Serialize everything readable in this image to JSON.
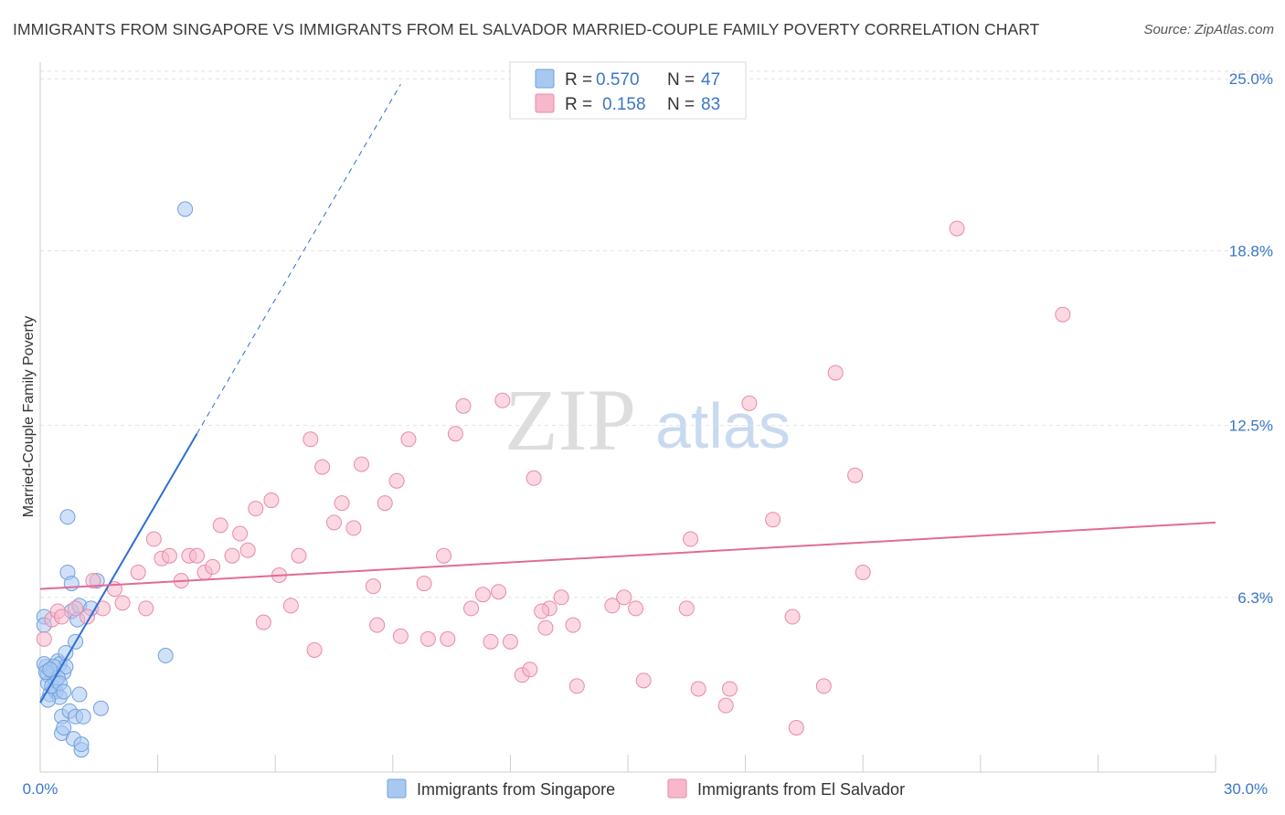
{
  "title": "IMMIGRANTS FROM SINGAPORE VS IMMIGRANTS FROM EL SALVADOR MARRIED-COUPLE FAMILY POVERTY CORRELATION CHART",
  "source": "Source: ZipAtlas.com",
  "watermark": {
    "zip": "ZIP",
    "atlas": "atlas"
  },
  "legend": {
    "rows": [
      {
        "r_label": "R =",
        "r_value": "0.570",
        "n_label": "N =",
        "n_value": "47",
        "color": "#a9c8f0"
      },
      {
        "r_label": "R =",
        "r_value": "0.158",
        "n_label": "N =",
        "n_value": "83",
        "color": "#f7b8cb"
      }
    ]
  },
  "bottom_legend": {
    "items": [
      {
        "label": "Immigrants from Singapore",
        "color": "#a9c8f0"
      },
      {
        "label": "Immigrants from El Salvador",
        "color": "#f7b8cb"
      }
    ]
  },
  "chart_data": {
    "type": "scatter",
    "title": "IMMIGRANTS FROM SINGAPORE VS IMMIGRANTS FROM EL SALVADOR MARRIED-COUPLE FAMILY POVERTY CORRELATION CHART",
    "xlabel": "",
    "ylabel": "Married-Couple Family Poverty",
    "xlim": [
      0,
      30
    ],
    "ylim": [
      0,
      25.6
    ],
    "x_tick_labels": [
      "0.0%",
      "30.0%"
    ],
    "y_ticks": [
      6.3,
      12.5,
      18.8,
      25.0
    ],
    "y_tick_labels": [
      "6.3%",
      "12.5%",
      "18.8%",
      "25.0%"
    ],
    "series": [
      {
        "name": "Immigrants from Singapore",
        "color": "#6fa0df",
        "fill": "#a9c8f0",
        "trend": {
          "x0": 0.0,
          "y0": 2.5,
          "x1": 4.0,
          "y1": 12.2,
          "dash_to_x": 9.2,
          "dash_to_y": 24.8,
          "color": "#2d6fd1"
        },
        "points": [
          [
            0.1,
            5.6
          ],
          [
            0.1,
            5.3
          ],
          [
            0.15,
            3.8
          ],
          [
            0.2,
            3.5
          ],
          [
            0.2,
            3.2
          ],
          [
            0.25,
            2.8
          ],
          [
            0.3,
            3.6
          ],
          [
            0.35,
            3.0
          ],
          [
            0.4,
            2.9
          ],
          [
            0.4,
            3.3
          ],
          [
            0.45,
            4.0
          ],
          [
            0.5,
            2.7
          ],
          [
            0.5,
            3.9
          ],
          [
            0.55,
            2.0
          ],
          [
            0.55,
            1.4
          ],
          [
            0.6,
            3.6
          ],
          [
            0.6,
            1.6
          ],
          [
            0.65,
            3.8
          ],
          [
            0.65,
            4.3
          ],
          [
            0.7,
            9.2
          ],
          [
            0.7,
            7.2
          ],
          [
            0.75,
            2.2
          ],
          [
            0.8,
            5.8
          ],
          [
            0.8,
            6.8
          ],
          [
            0.85,
            1.2
          ],
          [
            0.9,
            2.0
          ],
          [
            0.9,
            4.7
          ],
          [
            0.95,
            5.5
          ],
          [
            1.0,
            6.0
          ],
          [
            1.0,
            2.8
          ],
          [
            1.05,
            0.8
          ],
          [
            1.05,
            1.0
          ],
          [
            1.1,
            2.0
          ],
          [
            1.3,
            5.9
          ],
          [
            1.45,
            6.9
          ],
          [
            1.55,
            2.3
          ],
          [
            3.2,
            4.2
          ],
          [
            3.7,
            20.3
          ],
          [
            0.1,
            3.9
          ],
          [
            0.2,
            2.6
          ],
          [
            0.3,
            3.1
          ],
          [
            0.35,
            3.8
          ],
          [
            0.45,
            3.4
          ],
          [
            0.5,
            3.2
          ],
          [
            0.6,
            2.9
          ],
          [
            0.15,
            3.6
          ],
          [
            0.25,
            3.7
          ]
        ]
      },
      {
        "name": "Immigrants from El Salvador",
        "color": "#e88aa8",
        "fill": "#f7b8cb",
        "trend": {
          "x0": 0.0,
          "y0": 6.6,
          "x1": 30.0,
          "y1": 9.0,
          "color": "#e06c95"
        },
        "points": [
          [
            0.1,
            4.8
          ],
          [
            0.3,
            5.5
          ],
          [
            0.45,
            5.8
          ],
          [
            0.55,
            5.6
          ],
          [
            0.9,
            5.9
          ],
          [
            1.2,
            5.6
          ],
          [
            1.35,
            6.9
          ],
          [
            1.6,
            5.9
          ],
          [
            1.9,
            6.6
          ],
          [
            2.1,
            6.1
          ],
          [
            2.5,
            7.2
          ],
          [
            2.7,
            5.9
          ],
          [
            2.9,
            8.4
          ],
          [
            3.1,
            7.7
          ],
          [
            3.3,
            7.8
          ],
          [
            3.6,
            6.9
          ],
          [
            3.8,
            7.8
          ],
          [
            4.0,
            7.8
          ],
          [
            4.2,
            7.2
          ],
          [
            4.4,
            7.4
          ],
          [
            4.6,
            8.9
          ],
          [
            4.9,
            7.8
          ],
          [
            5.1,
            8.6
          ],
          [
            5.3,
            8.0
          ],
          [
            5.5,
            9.5
          ],
          [
            5.7,
            5.4
          ],
          [
            5.9,
            9.8
          ],
          [
            6.1,
            7.1
          ],
          [
            6.4,
            6.0
          ],
          [
            6.6,
            7.8
          ],
          [
            6.9,
            12.0
          ],
          [
            7.0,
            4.4
          ],
          [
            7.2,
            11.0
          ],
          [
            7.5,
            9.0
          ],
          [
            7.7,
            9.7
          ],
          [
            8.0,
            8.8
          ],
          [
            8.2,
            11.1
          ],
          [
            8.5,
            6.7
          ],
          [
            8.6,
            5.3
          ],
          [
            8.8,
            9.7
          ],
          [
            9.1,
            10.5
          ],
          [
            9.2,
            4.9
          ],
          [
            9.4,
            12.0
          ],
          [
            9.8,
            6.8
          ],
          [
            9.9,
            4.8
          ],
          [
            10.3,
            7.8
          ],
          [
            10.4,
            4.8
          ],
          [
            10.6,
            12.2
          ],
          [
            10.8,
            13.2
          ],
          [
            11.0,
            5.9
          ],
          [
            11.3,
            6.4
          ],
          [
            11.5,
            4.7
          ],
          [
            11.7,
            6.5
          ],
          [
            11.8,
            13.4
          ],
          [
            12.0,
            4.7
          ],
          [
            12.3,
            3.5
          ],
          [
            12.5,
            3.7
          ],
          [
            12.6,
            10.6
          ],
          [
            12.9,
            5.2
          ],
          [
            13.0,
            5.9
          ],
          [
            13.3,
            6.3
          ],
          [
            13.6,
            5.3
          ],
          [
            13.7,
            3.1
          ],
          [
            14.9,
            6.3
          ],
          [
            15.2,
            5.9
          ],
          [
            15.4,
            3.3
          ],
          [
            16.5,
            5.9
          ],
          [
            16.6,
            8.4
          ],
          [
            16.8,
            3.0
          ],
          [
            17.5,
            2.4
          ],
          [
            17.6,
            3.0
          ],
          [
            18.1,
            13.3
          ],
          [
            18.7,
            9.1
          ],
          [
            19.2,
            5.6
          ],
          [
            19.3,
            1.6
          ],
          [
            20.0,
            3.1
          ],
          [
            20.3,
            14.4
          ],
          [
            20.8,
            10.7
          ],
          [
            21.0,
            7.2
          ],
          [
            23.4,
            19.6
          ],
          [
            26.1,
            16.5
          ],
          [
            12.8,
            5.8
          ],
          [
            14.6,
            6.0
          ]
        ]
      }
    ]
  }
}
